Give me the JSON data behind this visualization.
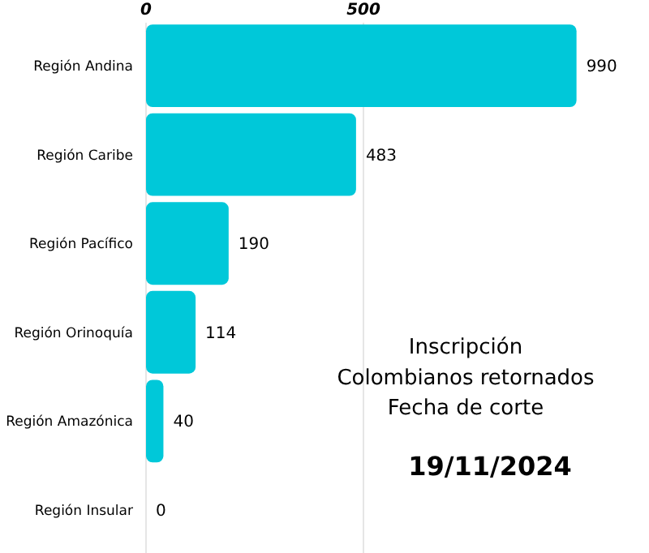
{
  "chart_data": {
    "type": "bar",
    "orientation": "horizontal",
    "categories": [
      "Región Andina",
      "Región Caribe",
      "Región Pacífico",
      "Región Orinoquía",
      "Región Amazónica",
      "Región Insular"
    ],
    "values": [
      990,
      483,
      190,
      114,
      40,
      0
    ],
    "color": "#00c8d9",
    "xlim": [
      0,
      1000
    ],
    "xticks": [
      0,
      500
    ],
    "grid": "x",
    "data_labels": true,
    "annotations": [
      "Inscripción\nColombianos retornados\nFecha de corte",
      "19/11/2024"
    ]
  }
}
